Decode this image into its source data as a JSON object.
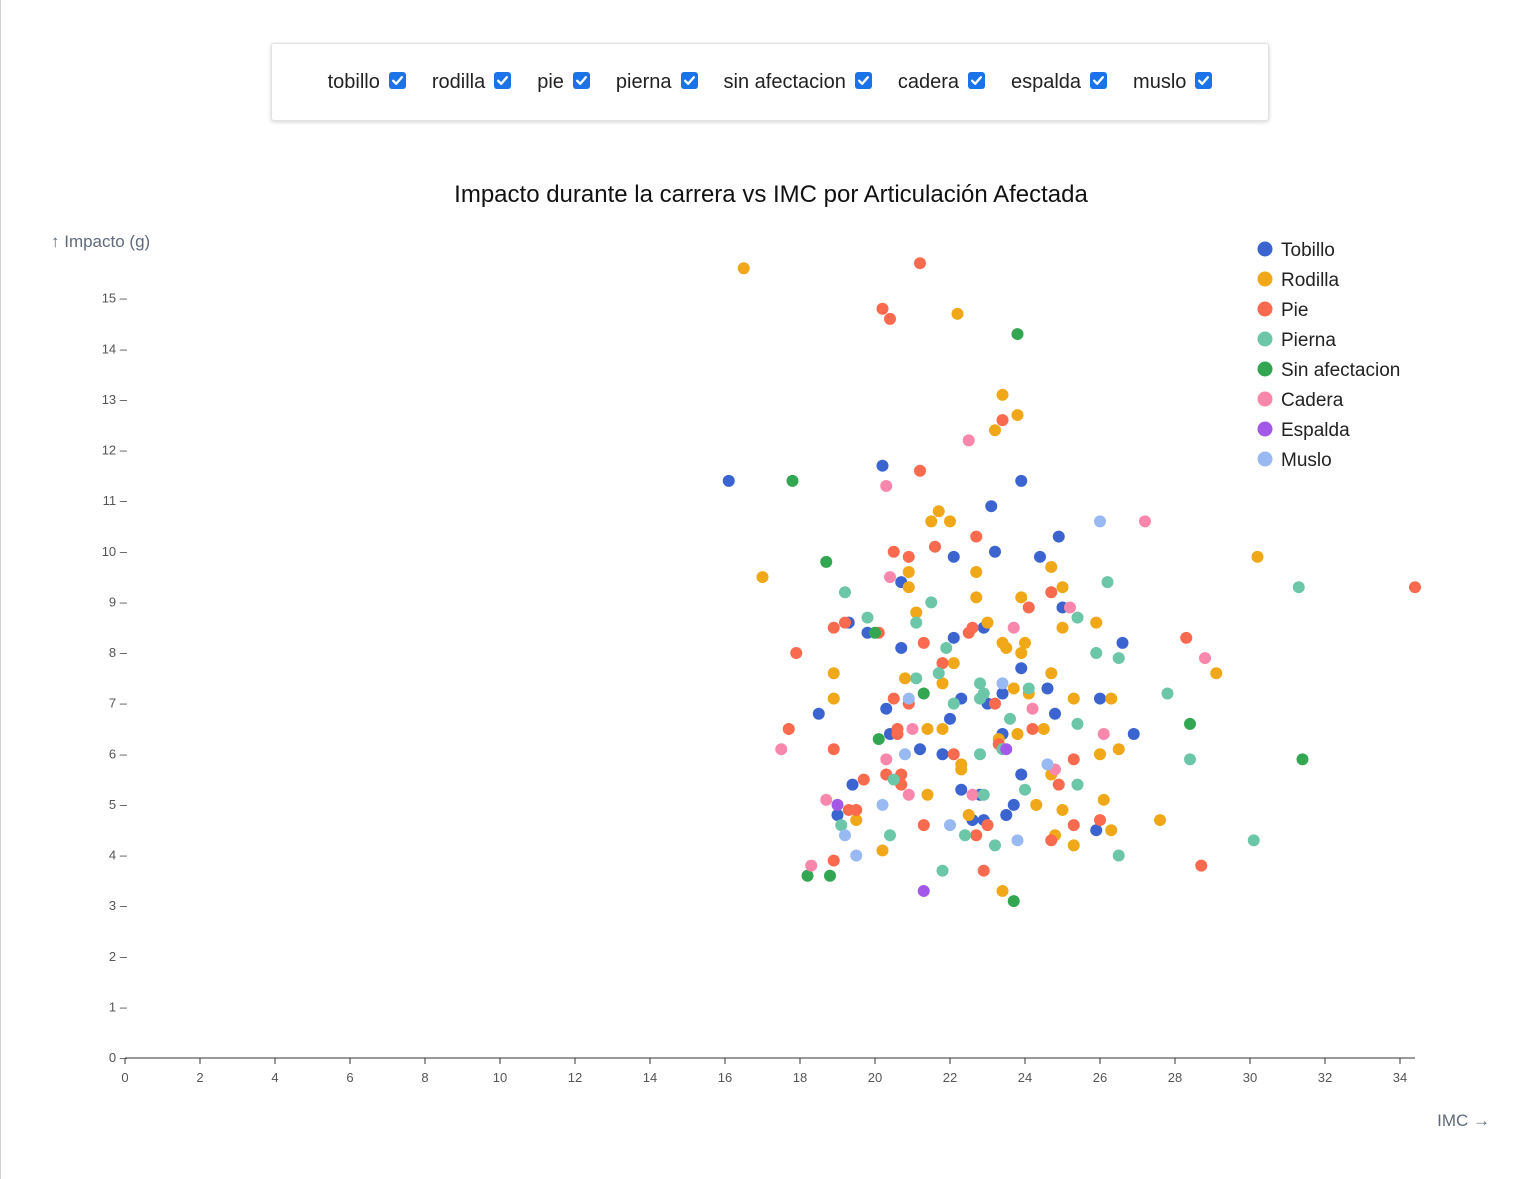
{
  "filters": [
    {
      "label": "tobillo",
      "checked": true
    },
    {
      "label": "rodilla",
      "checked": true
    },
    {
      "label": "pie",
      "checked": true
    },
    {
      "label": "pierna",
      "checked": true
    },
    {
      "label": "sin afectacion",
      "checked": true
    },
    {
      "label": "cadera",
      "checked": true
    },
    {
      "label": "espalda",
      "checked": true
    },
    {
      "label": "muslo",
      "checked": true
    }
  ],
  "checkbox_icon": "check-icon",
  "chart_data": {
    "type": "scatter",
    "title": "Impacto durante la carrera vs IMC por Articulación Afectada",
    "xlabel": "IMC →",
    "ylabel": "↑ Impacto (g)",
    "xlim": [
      0,
      34.4
    ],
    "ylim": [
      0,
      16
    ],
    "xticks": [
      "0",
      "2",
      "4",
      "6",
      "8",
      "10",
      "12",
      "14",
      "16",
      "18",
      "20",
      "22",
      "24",
      "26",
      "28",
      "30",
      "32",
      "34"
    ],
    "yticks": [
      "0",
      "1",
      "2",
      "3",
      "4",
      "5",
      "6",
      "7",
      "8",
      "9",
      "10",
      "11",
      "12",
      "13",
      "14",
      "15"
    ],
    "legend_position": "top-right",
    "grid": false,
    "series": [
      {
        "name": "Tobillo",
        "color": "#3b64d0",
        "points": [
          [
            16.1,
            11.4
          ],
          [
            20.2,
            11.7
          ],
          [
            23.9,
            11.4
          ],
          [
            23.1,
            10.9
          ],
          [
            24.9,
            10.3
          ],
          [
            24.4,
            9.9
          ],
          [
            23.2,
            10.0
          ],
          [
            22.1,
            9.9
          ],
          [
            20.7,
            9.4
          ],
          [
            19.3,
            8.6
          ],
          [
            19.8,
            8.4
          ],
          [
            22.1,
            8.3
          ],
          [
            22.9,
            8.5
          ],
          [
            25.0,
            8.9
          ],
          [
            26.6,
            8.2
          ],
          [
            20.7,
            8.1
          ],
          [
            23.9,
            7.7
          ],
          [
            22.3,
            7.1
          ],
          [
            23.4,
            7.2
          ],
          [
            24.6,
            7.3
          ],
          [
            26.0,
            7.1
          ],
          [
            20.3,
            6.9
          ],
          [
            22.0,
            6.7
          ],
          [
            24.8,
            6.8
          ],
          [
            18.5,
            6.8
          ],
          [
            23.4,
            6.4
          ],
          [
            26.9,
            6.4
          ],
          [
            20.4,
            6.4
          ],
          [
            21.2,
            6.1
          ],
          [
            21.8,
            6.0
          ],
          [
            23.0,
            7.0
          ],
          [
            19.4,
            5.4
          ],
          [
            22.3,
            5.3
          ],
          [
            22.8,
            5.2
          ],
          [
            23.9,
            5.6
          ],
          [
            23.7,
            5.0
          ],
          [
            23.5,
            4.8
          ],
          [
            22.9,
            4.7
          ],
          [
            22.6,
            4.7
          ],
          [
            19.0,
            4.8
          ],
          [
            25.9,
            4.5
          ]
        ]
      },
      {
        "name": "Rodilla",
        "color": "#f0a818",
        "points": [
          [
            16.5,
            15.6
          ],
          [
            22.2,
            14.7
          ],
          [
            23.4,
            13.1
          ],
          [
            23.8,
            12.7
          ],
          [
            23.2,
            12.4
          ],
          [
            21.7,
            10.8
          ],
          [
            21.5,
            10.6
          ],
          [
            22.0,
            10.6
          ],
          [
            30.2,
            9.9
          ],
          [
            17.0,
            9.5
          ],
          [
            20.9,
            9.6
          ],
          [
            20.9,
            9.3
          ],
          [
            22.7,
            9.6
          ],
          [
            24.7,
            9.7
          ],
          [
            25.0,
            9.3
          ],
          [
            22.7,
            9.1
          ],
          [
            23.9,
            9.1
          ],
          [
            21.1,
            8.8
          ],
          [
            23.0,
            8.6
          ],
          [
            25.0,
            8.5
          ],
          [
            25.9,
            8.6
          ],
          [
            23.4,
            8.2
          ],
          [
            24.0,
            8.2
          ],
          [
            23.5,
            8.1
          ],
          [
            23.9,
            8.0
          ],
          [
            22.1,
            7.8
          ],
          [
            18.9,
            7.6
          ],
          [
            20.8,
            7.5
          ],
          [
            24.7,
            7.6
          ],
          [
            29.1,
            7.6
          ],
          [
            21.8,
            7.4
          ],
          [
            23.7,
            7.3
          ],
          [
            24.1,
            7.2
          ],
          [
            18.9,
            7.1
          ],
          [
            25.3,
            7.1
          ],
          [
            26.3,
            7.1
          ],
          [
            21.8,
            6.5
          ],
          [
            21.4,
            6.5
          ],
          [
            23.8,
            6.4
          ],
          [
            24.5,
            6.5
          ],
          [
            26.5,
            6.1
          ],
          [
            26.0,
            6.0
          ],
          [
            23.3,
            6.3
          ],
          [
            22.3,
            5.8
          ],
          [
            22.3,
            5.7
          ],
          [
            24.7,
            5.6
          ],
          [
            21.4,
            5.2
          ],
          [
            24.3,
            5.0
          ],
          [
            25.0,
            4.9
          ],
          [
            26.1,
            5.1
          ],
          [
            19.5,
            4.7
          ],
          [
            22.5,
            4.8
          ],
          [
            27.6,
            4.7
          ],
          [
            24.8,
            4.4
          ],
          [
            26.3,
            4.5
          ],
          [
            25.3,
            4.2
          ],
          [
            20.2,
            4.1
          ],
          [
            23.4,
            3.3
          ]
        ]
      },
      {
        "name": "Pie",
        "color": "#f96a4f",
        "points": [
          [
            21.2,
            15.7
          ],
          [
            20.2,
            14.8
          ],
          [
            20.4,
            14.6
          ],
          [
            23.4,
            12.6
          ],
          [
            21.2,
            11.6
          ],
          [
            22.7,
            10.3
          ],
          [
            20.5,
            10.0
          ],
          [
            20.9,
            9.9
          ],
          [
            21.6,
            10.1
          ],
          [
            34.4,
            9.3
          ],
          [
            24.7,
            9.2
          ],
          [
            24.1,
            8.9
          ],
          [
            19.2,
            8.6
          ],
          [
            18.9,
            8.5
          ],
          [
            20.1,
            8.4
          ],
          [
            22.6,
            8.5
          ],
          [
            22.5,
            8.4
          ],
          [
            21.3,
            8.2
          ],
          [
            28.3,
            8.3
          ],
          [
            17.9,
            8.0
          ],
          [
            21.8,
            7.8
          ],
          [
            20.5,
            7.1
          ],
          [
            20.9,
            7.0
          ],
          [
            23.2,
            7.0
          ],
          [
            24.2,
            6.5
          ],
          [
            17.7,
            6.5
          ],
          [
            20.6,
            6.5
          ],
          [
            20.6,
            6.4
          ],
          [
            23.3,
            6.2
          ],
          [
            18.9,
            6.1
          ],
          [
            22.1,
            6.0
          ],
          [
            25.3,
            5.9
          ],
          [
            20.3,
            5.6
          ],
          [
            20.7,
            5.6
          ],
          [
            19.7,
            5.5
          ],
          [
            20.7,
            5.4
          ],
          [
            24.9,
            5.4
          ],
          [
            19.3,
            4.9
          ],
          [
            19.5,
            4.9
          ],
          [
            21.3,
            4.6
          ],
          [
            22.7,
            4.4
          ],
          [
            23.0,
            4.6
          ],
          [
            25.3,
            4.6
          ],
          [
            24.7,
            4.3
          ],
          [
            26.0,
            4.7
          ],
          [
            18.9,
            3.9
          ],
          [
            22.9,
            3.7
          ],
          [
            28.7,
            3.8
          ]
        ]
      },
      {
        "name": "Pierna",
        "color": "#6cc6a8",
        "points": [
          [
            19.2,
            9.2
          ],
          [
            21.5,
            9.0
          ],
          [
            26.2,
            9.4
          ],
          [
            31.3,
            9.3
          ],
          [
            19.8,
            8.7
          ],
          [
            21.1,
            8.6
          ],
          [
            25.4,
            8.7
          ],
          [
            21.9,
            8.1
          ],
          [
            25.9,
            8.0
          ],
          [
            26.5,
            7.9
          ],
          [
            21.7,
            7.6
          ],
          [
            21.1,
            7.5
          ],
          [
            22.8,
            7.4
          ],
          [
            22.9,
            7.2
          ],
          [
            22.8,
            7.1
          ],
          [
            22.1,
            7.0
          ],
          [
            24.1,
            7.3
          ],
          [
            27.8,
            7.2
          ],
          [
            23.6,
            6.7
          ],
          [
            25.4,
            6.6
          ],
          [
            22.8,
            6.0
          ],
          [
            23.4,
            6.1
          ],
          [
            28.4,
            5.9
          ],
          [
            20.5,
            5.5
          ],
          [
            22.9,
            5.2
          ],
          [
            24.0,
            5.3
          ],
          [
            25.4,
            5.4
          ],
          [
            19.1,
            4.6
          ],
          [
            20.4,
            4.4
          ],
          [
            22.4,
            4.4
          ],
          [
            23.2,
            4.2
          ],
          [
            26.5,
            4.0
          ],
          [
            30.1,
            4.3
          ],
          [
            21.8,
            3.7
          ]
        ]
      },
      {
        "name": "Sin afectacion",
        "color": "#33a652",
        "points": [
          [
            23.8,
            14.3
          ],
          [
            17.8,
            11.4
          ],
          [
            18.7,
            9.8
          ],
          [
            20.0,
            8.4
          ],
          [
            21.3,
            7.2
          ],
          [
            28.4,
            6.6
          ],
          [
            20.1,
            6.3
          ],
          [
            31.4,
            5.9
          ],
          [
            18.2,
            3.6
          ],
          [
            18.8,
            3.6
          ],
          [
            23.7,
            3.1
          ]
        ]
      },
      {
        "name": "Cadera",
        "color": "#f987ab",
        "points": [
          [
            22.5,
            12.2
          ],
          [
            20.3,
            11.3
          ],
          [
            27.2,
            10.6
          ],
          [
            20.4,
            9.5
          ],
          [
            25.2,
            8.9
          ],
          [
            23.7,
            8.5
          ],
          [
            28.8,
            7.9
          ],
          [
            24.2,
            6.9
          ],
          [
            21.0,
            6.5
          ],
          [
            26.1,
            6.4
          ],
          [
            17.5,
            6.1
          ],
          [
            20.3,
            5.9
          ],
          [
            24.8,
            5.7
          ],
          [
            18.7,
            5.1
          ],
          [
            20.9,
            5.2
          ],
          [
            22.6,
            5.2
          ],
          [
            18.3,
            3.8
          ]
        ]
      },
      {
        "name": "Espalda",
        "color": "#a259e8",
        "points": [
          [
            23.5,
            6.1
          ],
          [
            19.0,
            5.0
          ],
          [
            21.3,
            3.3
          ]
        ]
      },
      {
        "name": "Muslo",
        "color": "#98b9f2",
        "points": [
          [
            26.0,
            10.6
          ],
          [
            23.4,
            7.4
          ],
          [
            20.9,
            7.1
          ],
          [
            20.8,
            6.0
          ],
          [
            24.6,
            5.8
          ],
          [
            20.2,
            5.0
          ],
          [
            22.0,
            4.6
          ],
          [
            19.2,
            4.4
          ],
          [
            23.8,
            4.3
          ],
          [
            19.5,
            4.0
          ]
        ]
      }
    ]
  }
}
